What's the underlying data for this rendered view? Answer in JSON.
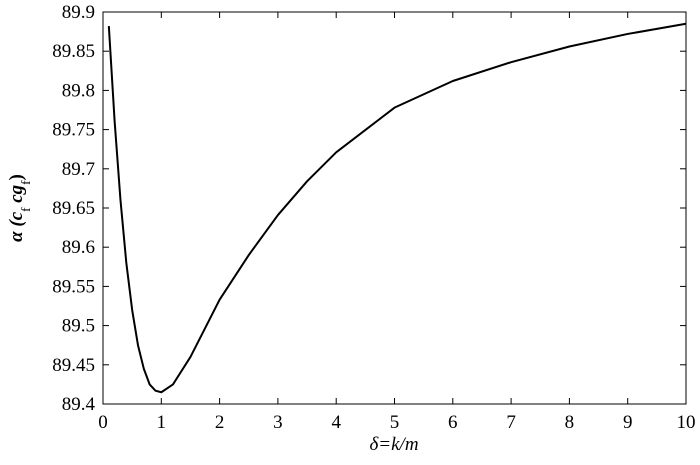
{
  "chart_data": {
    "type": "line",
    "xlabel": "δ=k/m",
    "ylabel": [
      "α (",
      "c",
      "f",
      " cg",
      "f",
      ")"
    ],
    "x": [
      0.1,
      0.2,
      0.3,
      0.4,
      0.5,
      0.6,
      0.7,
      0.8,
      0.9,
      1.0,
      1.2,
      1.5,
      2,
      2.5,
      3,
      3.5,
      4,
      5,
      6,
      7,
      8,
      9,
      10
    ],
    "series": [
      {
        "color": "#000000",
        "values": [
          89.882,
          89.76,
          89.66,
          89.58,
          89.52,
          89.475,
          89.445,
          89.425,
          89.417,
          89.415,
          89.425,
          89.46,
          89.533,
          89.59,
          89.641,
          89.684,
          89.721,
          89.778,
          89.812,
          89.836,
          89.856,
          89.872,
          89.885
        ]
      }
    ],
    "xlim": [
      0,
      10
    ],
    "xticks": [
      0,
      1,
      2,
      3,
      4,
      5,
      6,
      7,
      8,
      9,
      10
    ],
    "ylim": [
      89.4,
      89.9
    ],
    "yticks": [
      89.4,
      89.45,
      89.5,
      89.55,
      89.6,
      89.65,
      89.7,
      89.75,
      89.8,
      89.85,
      89.9
    ],
    "grid": false
  }
}
